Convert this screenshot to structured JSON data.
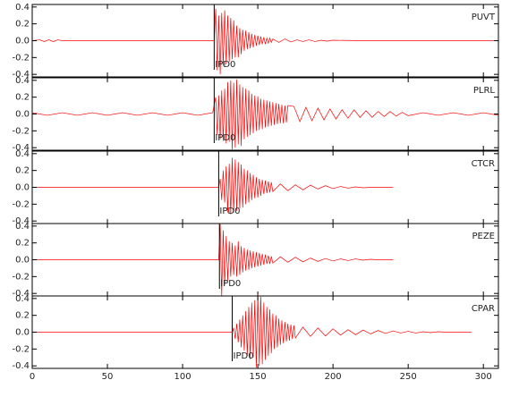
{
  "chart_data": [
    {
      "type": "line",
      "label": "PUVT",
      "color": "#ff0000",
      "pick": {
        "label": "IPD0",
        "x": 121
      },
      "xlim": [
        0,
        310
      ],
      "ylim": [
        -0.43,
        0.43
      ],
      "yticks": [
        -0.4,
        -0.2,
        {
          "value": 0,
          "label": "0.0"
        },
        0.2,
        0.4
      ],
      "x": [
        0,
        5,
        8,
        11,
        14,
        17,
        20,
        40,
        60,
        80,
        100,
        120,
        121,
        122,
        123,
        124,
        125,
        126,
        127,
        128,
        129,
        130,
        131,
        132,
        133,
        134,
        135,
        136,
        137,
        138,
        139,
        140,
        141,
        142,
        143,
        144,
        145,
        146,
        147,
        148,
        149,
        150,
        151,
        152,
        153,
        154,
        155,
        156,
        157,
        158,
        159,
        160,
        164,
        168,
        172,
        176,
        180,
        184,
        188,
        192,
        196,
        200,
        220,
        260,
        310
      ],
      "values": [
        0,
        0.01,
        -0.01,
        0.01,
        -0.01,
        0.01,
        0,
        0,
        0,
        0,
        0,
        0,
        0,
        0.38,
        -0.35,
        0.3,
        -0.4,
        0.33,
        -0.3,
        0.36,
        -0.28,
        0.3,
        -0.25,
        0.27,
        -0.22,
        0.24,
        -0.2,
        0.18,
        -0.2,
        0.15,
        -0.16,
        0.13,
        -0.12,
        0.12,
        -0.1,
        0.1,
        -0.09,
        0.08,
        -0.08,
        0.07,
        -0.06,
        0.06,
        -0.05,
        0.05,
        -0.04,
        0.04,
        -0.04,
        0.03,
        -0.03,
        0.03,
        -0.02,
        0.02,
        -0.02,
        0.02,
        -0.015,
        0.01,
        -0.01,
        0.01,
        -0.01,
        0.005,
        -0.005,
        0.005,
        0,
        0,
        0
      ]
    },
    {
      "type": "line",
      "label": "PLRL",
      "color": "#ff0000",
      "pick": {
        "label": "IPD0",
        "x": 121
      },
      "xlim": [
        0,
        310
      ],
      "ylim": [
        -0.43,
        0.43
      ],
      "yticks": [
        -0.4,
        -0.2,
        {
          "value": 0,
          "label": "0.0"
        },
        0.2,
        0.4
      ],
      "x": [
        0,
        10,
        20,
        30,
        40,
        50,
        60,
        70,
        80,
        90,
        100,
        110,
        120,
        122,
        123,
        124,
        125,
        126,
        127,
        128,
        129,
        130,
        131,
        132,
        133,
        134,
        135,
        136,
        137,
        138,
        139,
        140,
        141,
        142,
        143,
        144,
        145,
        146,
        147,
        148,
        149,
        150,
        151,
        152,
        153,
        154,
        155,
        156,
        157,
        158,
        159,
        160,
        161,
        162,
        163,
        164,
        165,
        166,
        167,
        168,
        169,
        170,
        174,
        178,
        182,
        186,
        190,
        194,
        198,
        202,
        206,
        210,
        214,
        218,
        222,
        226,
        230,
        234,
        238,
        242,
        246,
        250,
        260,
        270,
        280,
        290,
        300,
        310
      ],
      "values": [
        0.015,
        -0.015,
        0.015,
        -0.015,
        0.015,
        -0.015,
        0.015,
        -0.015,
        0.015,
        -0.015,
        0.015,
        -0.015,
        0.015,
        0.2,
        -0.25,
        0.22,
        -0.3,
        0.28,
        -0.32,
        0.3,
        -0.35,
        0.38,
        -0.33,
        0.4,
        -0.42,
        0.37,
        -0.4,
        0.41,
        -0.36,
        0.35,
        -0.38,
        0.32,
        -0.3,
        0.3,
        -0.27,
        0.28,
        -0.25,
        0.24,
        -0.23,
        0.22,
        -0.2,
        0.21,
        -0.19,
        0.18,
        -0.18,
        0.17,
        -0.16,
        0.16,
        -0.15,
        0.15,
        -0.14,
        0.14,
        -0.13,
        0.13,
        -0.12,
        0.12,
        -0.11,
        0.11,
        -0.11,
        0.1,
        -0.1,
        0.1,
        0.09,
        -0.09,
        0.08,
        -0.08,
        0.07,
        -0.07,
        0.06,
        -0.06,
        0.05,
        -0.05,
        0.05,
        -0.04,
        0.04,
        -0.04,
        0.03,
        -0.03,
        0.03,
        -0.025,
        0.02,
        -0.02,
        0.015,
        -0.015,
        0.015,
        -0.015,
        0.015,
        -0.015
      ]
    },
    {
      "type": "line",
      "label": "CTCR",
      "color": "#ff0000",
      "pick": {
        "label": "IPD0",
        "x": 124
      },
      "xlim": [
        0,
        310
      ],
      "ylim": [
        -0.43,
        0.43
      ],
      "yticks": [
        -0.4,
        -0.2,
        {
          "value": 0,
          "label": "0.0"
        },
        0.2,
        0.4
      ],
      "x": [
        0,
        20,
        40,
        60,
        80,
        100,
        120,
        124,
        125,
        126,
        127,
        128,
        129,
        130,
        131,
        132,
        133,
        134,
        135,
        136,
        137,
        138,
        139,
        140,
        141,
        142,
        143,
        144,
        145,
        146,
        147,
        148,
        149,
        150,
        151,
        152,
        153,
        154,
        155,
        156,
        157,
        158,
        159,
        160,
        165,
        170,
        175,
        180,
        185,
        190,
        195,
        200,
        205,
        210,
        215,
        220,
        225,
        230,
        235,
        240
      ],
      "values": [
        0,
        0,
        0,
        0,
        0,
        0,
        0,
        0,
        0.1,
        -0.15,
        0.2,
        -0.18,
        0.25,
        -0.3,
        0.28,
        -0.32,
        0.35,
        -0.3,
        0.33,
        -0.28,
        0.3,
        -0.25,
        0.27,
        -0.24,
        0.22,
        -0.2,
        0.2,
        -0.18,
        0.17,
        -0.15,
        0.15,
        -0.13,
        0.12,
        -0.12,
        0.1,
        -0.1,
        0.09,
        -0.08,
        0.08,
        -0.07,
        0.07,
        -0.06,
        0.06,
        -0.05,
        0.04,
        -0.04,
        0.03,
        -0.03,
        0.025,
        -0.02,
        0.02,
        -0.015,
        0.01,
        -0.01,
        0.005,
        -0.005,
        0,
        0,
        0,
        0
      ]
    },
    {
      "type": "line",
      "label": "PEZE",
      "color": "#ff0000",
      "pick": {
        "label": "IPD0",
        "x": 124.5
      },
      "xlim": [
        0,
        310
      ],
      "ylim": [
        -0.43,
        0.43
      ],
      "yticks": [
        -0.4,
        -0.2,
        {
          "value": 0,
          "label": "0.0"
        },
        0.2,
        0.4
      ],
      "x": [
        0,
        20,
        40,
        60,
        80,
        100,
        120,
        124,
        125,
        126,
        127,
        128,
        129,
        130,
        131,
        132,
        133,
        134,
        135,
        136,
        137,
        138,
        139,
        140,
        141,
        142,
        143,
        144,
        145,
        146,
        147,
        148,
        149,
        150,
        151,
        152,
        153,
        154,
        155,
        156,
        157,
        158,
        159,
        160,
        165,
        170,
        175,
        180,
        185,
        190,
        195,
        200,
        205,
        210,
        215,
        220,
        225,
        230,
        235,
        240
      ],
      "values": [
        0,
        0,
        0,
        0,
        0,
        0,
        0,
        0,
        0.42,
        -0.43,
        0.35,
        -0.3,
        0.28,
        -0.25,
        0.22,
        -0.2,
        0.2,
        -0.18,
        0.17,
        -0.2,
        0.22,
        -0.18,
        0.16,
        -0.15,
        0.14,
        -0.13,
        0.12,
        -0.12,
        0.11,
        -0.1,
        0.1,
        -0.09,
        0.09,
        -0.08,
        0.08,
        -0.07,
        0.07,
        -0.06,
        0.06,
        -0.05,
        0.05,
        -0.05,
        0.04,
        -0.04,
        0.035,
        -0.03,
        0.03,
        -0.025,
        0.02,
        -0.02,
        0.015,
        -0.015,
        0.01,
        -0.01,
        0.01,
        -0.005,
        0.005,
        0,
        0,
        0
      ]
    },
    {
      "type": "line",
      "label": "CPAR",
      "color": "#ff0000",
      "pick": {
        "label": "IPD0",
        "x": 133
      },
      "xlim": [
        0,
        310
      ],
      "ylim": [
        -0.43,
        0.43
      ],
      "yticks": [
        -0.4,
        -0.2,
        {
          "value": 0,
          "label": "0.0"
        },
        0.2,
        0.4
      ],
      "xticks": [
        0,
        50,
        100,
        150,
        200,
        250,
        300
      ],
      "x": [
        0,
        20,
        40,
        60,
        80,
        100,
        120,
        133,
        134,
        135,
        136,
        137,
        138,
        139,
        140,
        141,
        142,
        143,
        144,
        145,
        146,
        147,
        148,
        149,
        150,
        151,
        152,
        153,
        154,
        155,
        156,
        157,
        158,
        159,
        160,
        161,
        162,
        163,
        164,
        165,
        166,
        167,
        168,
        169,
        170,
        171,
        172,
        173,
        174,
        175,
        180,
        185,
        190,
        195,
        200,
        205,
        210,
        215,
        220,
        225,
        230,
        235,
        240,
        245,
        250,
        255,
        260,
        265,
        270,
        275,
        280,
        285,
        290,
        292
      ],
      "values": [
        0,
        0,
        0,
        0,
        0,
        0,
        0,
        0,
        0.05,
        -0.08,
        0.1,
        -0.12,
        0.15,
        -0.18,
        0.2,
        -0.22,
        0.25,
        -0.28,
        0.3,
        -0.32,
        0.35,
        -0.3,
        0.38,
        -0.42,
        0.45,
        -0.4,
        0.42,
        -0.38,
        0.35,
        -0.33,
        0.3,
        -0.28,
        0.27,
        -0.25,
        0.22,
        -0.2,
        0.2,
        -0.18,
        0.16,
        -0.15,
        0.14,
        -0.13,
        0.12,
        -0.11,
        0.1,
        -0.1,
        0.09,
        -0.08,
        0.08,
        -0.07,
        0.06,
        -0.05,
        0.05,
        -0.045,
        0.04,
        -0.035,
        0.03,
        -0.03,
        0.025,
        -0.02,
        0.02,
        -0.015,
        0.015,
        -0.01,
        0.01,
        -0.01,
        0.005,
        -0.005,
        0.005,
        0,
        0,
        0,
        0,
        0
      ]
    }
  ]
}
